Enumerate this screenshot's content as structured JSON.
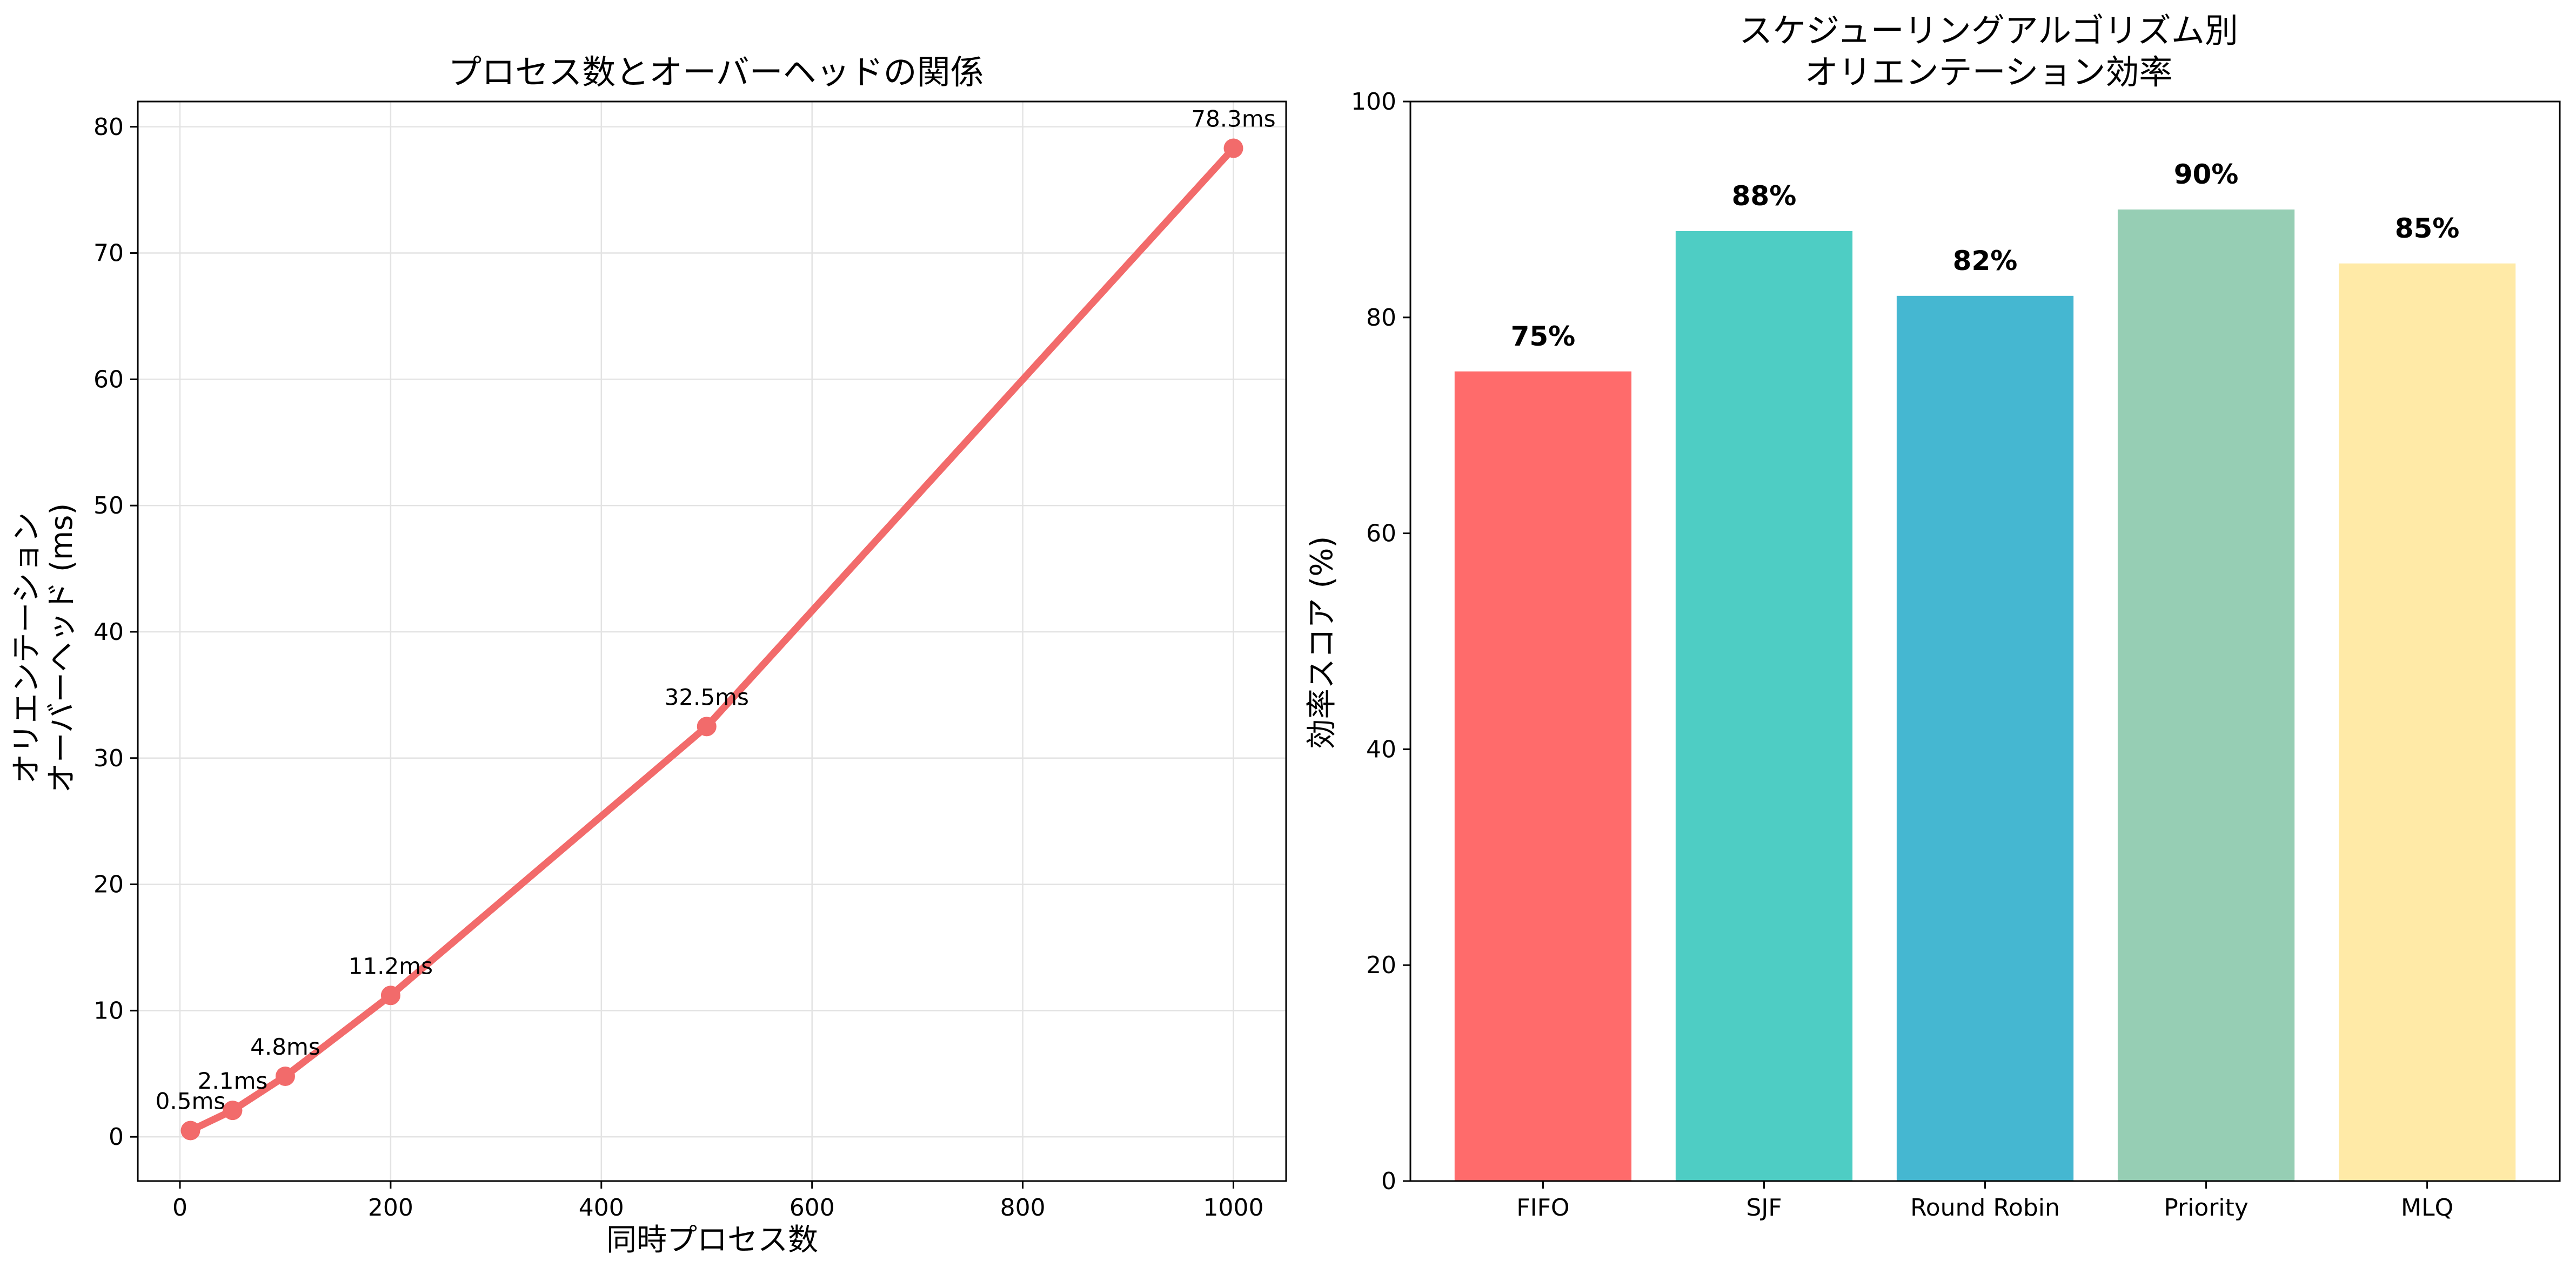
{
  "chart_data": [
    {
      "type": "line",
      "title": "プロセス数とオーバーヘッドの関係",
      "xlabel": "同時プロセス数",
      "ylabel": [
        "オリエンテーション",
        "オーバーヘッド (ms)"
      ],
      "x": [
        10,
        50,
        100,
        200,
        500,
        1000
      ],
      "y": [
        0.5,
        2.1,
        4.8,
        11.2,
        32.5,
        78.3
      ],
      "point_labels": [
        "0.5ms",
        "2.1ms",
        "4.8ms",
        "11.2ms",
        "32.5ms",
        "78.3ms"
      ],
      "xlim": [
        -40,
        1050
      ],
      "ylim": [
        -3.5,
        82
      ],
      "xticks": [
        0,
        200,
        400,
        600,
        800,
        1000
      ],
      "yticks": [
        0,
        10,
        20,
        30,
        40,
        50,
        60,
        70,
        80
      ],
      "grid": true,
      "color": "#f26b6b"
    },
    {
      "type": "bar",
      "title": [
        "スケジューリングアルゴリズム別",
        "オリエンテーション効率"
      ],
      "xlabel": "",
      "ylabel": "効率スコア (%)",
      "categories": [
        "FIFO",
        "SJF",
        "Round Robin",
        "Priority",
        "MLQ"
      ],
      "values": [
        75,
        88,
        82,
        90,
        85
      ],
      "value_labels": [
        "75%",
        "88%",
        "82%",
        "90%",
        "85%"
      ],
      "colors": [
        "#ff6b6b",
        "#4ecdc4",
        "#45b7d1",
        "#96ceb4",
        "#ffeaa7"
      ],
      "ylim": [
        0,
        100
      ],
      "yticks": [
        0,
        20,
        40,
        60,
        80,
        100
      ],
      "grid": false
    }
  ]
}
